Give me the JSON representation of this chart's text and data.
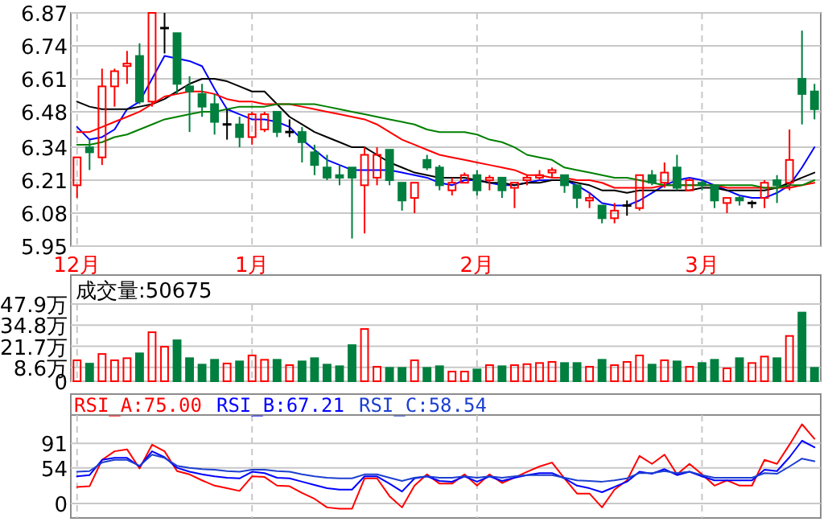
{
  "chart_data": [
    {
      "type": "candlestick",
      "categories": [
        "12月",
        null,
        null,
        null,
        null,
        null,
        null,
        null,
        null,
        null,
        null,
        null,
        null,
        null,
        "1月",
        null,
        null,
        null,
        null,
        null,
        null,
        null,
        null,
        null,
        null,
        null,
        null,
        null,
        null,
        null,
        null,
        null,
        "2月",
        null,
        null,
        null,
        null,
        null,
        null,
        null,
        null,
        null,
        null,
        null,
        null,
        null,
        null,
        null,
        null,
        null,
        "3月",
        null,
        null,
        null,
        null,
        null,
        null,
        null,
        null,
        null
      ],
      "ohlc": [
        [
          6.19,
          6.3,
          6.14,
          6.3
        ],
        [
          6.34,
          6.37,
          6.25,
          6.32
        ],
        [
          6.3,
          6.65,
          6.27,
          6.58
        ],
        [
          6.58,
          6.65,
          6.5,
          6.64
        ],
        [
          6.66,
          6.72,
          6.59,
          6.67
        ],
        [
          6.7,
          6.75,
          6.51,
          6.52
        ],
        [
          6.52,
          6.87,
          6.5,
          6.87
        ],
        [
          6.81,
          6.87,
          6.71,
          6.81
        ],
        [
          6.79,
          6.79,
          6.55,
          6.59
        ],
        [
          6.58,
          6.62,
          6.4,
          6.56
        ],
        [
          6.55,
          6.59,
          6.46,
          6.5
        ],
        [
          6.51,
          6.55,
          6.39,
          6.44
        ],
        [
          6.43,
          6.49,
          6.37,
          6.43
        ],
        [
          6.43,
          6.46,
          6.34,
          6.38
        ],
        [
          6.38,
          6.48,
          6.35,
          6.47
        ],
        [
          6.41,
          6.48,
          6.4,
          6.47
        ],
        [
          6.48,
          6.48,
          6.38,
          6.4
        ],
        [
          6.4,
          6.45,
          6.38,
          6.4
        ],
        [
          6.4,
          6.42,
          6.28,
          6.36
        ],
        [
          6.32,
          6.35,
          6.23,
          6.27
        ],
        [
          6.26,
          6.31,
          6.21,
          6.22
        ],
        [
          6.23,
          6.27,
          6.19,
          6.22
        ],
        [
          6.26,
          6.26,
          5.98,
          6.22
        ],
        [
          6.19,
          6.34,
          6.0,
          6.31
        ],
        [
          6.22,
          6.34,
          6.19,
          6.31
        ],
        [
          6.33,
          6.33,
          6.19,
          6.21
        ],
        [
          6.2,
          6.2,
          6.09,
          6.13
        ],
        [
          6.14,
          6.2,
          6.08,
          6.2
        ],
        [
          6.29,
          6.31,
          6.25,
          6.26
        ],
        [
          6.26,
          6.27,
          6.17,
          6.19
        ],
        [
          6.17,
          6.22,
          6.15,
          6.2
        ],
        [
          6.2,
          6.24,
          6.2,
          6.23
        ],
        [
          6.23,
          6.25,
          6.15,
          6.17
        ],
        [
          6.21,
          6.23,
          6.17,
          6.22
        ],
        [
          6.22,
          6.22,
          6.14,
          6.17
        ],
        [
          6.18,
          6.2,
          6.1,
          6.2
        ],
        [
          6.21,
          6.23,
          6.19,
          6.22
        ],
        [
          6.22,
          6.25,
          6.21,
          6.23
        ],
        [
          6.24,
          6.26,
          6.22,
          6.25
        ],
        [
          6.23,
          6.23,
          6.16,
          6.19
        ],
        [
          6.19,
          6.19,
          6.1,
          6.14
        ],
        [
          6.13,
          6.16,
          6.1,
          6.14
        ],
        [
          6.11,
          6.11,
          6.04,
          6.06
        ],
        [
          6.06,
          6.12,
          6.04,
          6.09
        ],
        [
          6.11,
          6.13,
          6.07,
          6.11
        ],
        [
          6.1,
          6.23,
          6.09,
          6.23
        ],
        [
          6.23,
          6.25,
          6.19,
          6.2
        ],
        [
          6.2,
          6.28,
          6.18,
          6.24
        ],
        [
          6.26,
          6.31,
          6.17,
          6.18
        ],
        [
          6.17,
          6.22,
          6.17,
          6.21
        ],
        [
          6.2,
          6.21,
          6.17,
          6.19
        ],
        [
          6.19,
          6.19,
          6.1,
          6.13
        ],
        [
          6.12,
          6.14,
          6.08,
          6.14
        ],
        [
          6.14,
          6.15,
          6.11,
          6.13
        ],
        [
          6.12,
          6.13,
          6.1,
          6.12
        ],
        [
          6.14,
          6.21,
          6.1,
          6.2
        ],
        [
          6.21,
          6.23,
          6.12,
          6.19
        ],
        [
          6.2,
          6.41,
          6.17,
          6.29
        ],
        [
          6.61,
          6.8,
          6.43,
          6.55
        ],
        [
          6.56,
          6.59,
          6.45,
          6.49
        ]
      ],
      "series": [
        {
          "type": "line",
          "color": "#0000ff",
          "values": [
            6.42,
            6.37,
            6.38,
            6.41,
            6.49,
            6.52,
            6.61,
            6.7,
            6.69,
            6.68,
            6.66,
            6.57,
            6.49,
            6.47,
            6.45,
            6.45,
            6.44,
            6.42,
            6.37,
            6.33,
            6.29,
            6.27,
            6.25,
            6.25,
            6.25,
            6.25,
            6.24,
            6.23,
            6.22,
            6.2,
            6.19,
            6.21,
            6.21,
            6.2,
            6.19,
            6.19,
            6.2,
            6.21,
            6.21,
            6.21,
            6.19,
            6.16,
            6.12,
            6.11,
            6.11,
            6.13,
            6.16,
            6.19,
            6.21,
            6.22,
            6.21,
            6.19,
            6.17,
            6.15,
            6.14,
            6.14,
            6.16,
            6.19,
            6.26,
            6.34
          ]
        },
        {
          "type": "line",
          "color": "#000000",
          "values": [
            6.52,
            6.5,
            6.49,
            6.49,
            6.49,
            6.5,
            6.51,
            6.53,
            6.56,
            6.59,
            6.61,
            6.61,
            6.6,
            6.58,
            6.56,
            6.56,
            6.51,
            6.46,
            6.43,
            6.4,
            6.38,
            6.36,
            6.34,
            6.34,
            6.31,
            6.28,
            6.26,
            6.24,
            6.23,
            6.22,
            6.22,
            6.22,
            6.21,
            6.2,
            6.2,
            6.19,
            6.2,
            6.2,
            6.21,
            6.21,
            6.2,
            6.19,
            6.17,
            6.17,
            6.16,
            6.17,
            6.17,
            6.17,
            6.17,
            6.17,
            6.18,
            6.18,
            6.17,
            6.17,
            6.17,
            6.17,
            6.18,
            6.2,
            6.22,
            6.24
          ]
        },
        {
          "type": "line",
          "color": "#ff0000",
          "values": [
            6.4,
            6.4,
            6.42,
            6.44,
            6.46,
            6.48,
            6.51,
            6.54,
            6.55,
            6.56,
            6.56,
            6.55,
            6.53,
            6.52,
            6.52,
            6.51,
            6.51,
            6.51,
            6.5,
            6.49,
            6.48,
            6.47,
            6.46,
            6.45,
            6.43,
            6.4,
            6.37,
            6.35,
            6.33,
            6.31,
            6.3,
            6.29,
            6.28,
            6.27,
            6.26,
            6.25,
            6.23,
            6.23,
            6.22,
            6.22,
            6.21,
            6.21,
            6.2,
            6.18,
            6.18,
            6.18,
            6.18,
            6.19,
            6.19,
            6.19,
            6.19,
            6.19,
            6.18,
            6.18,
            6.18,
            6.18,
            6.18,
            6.18,
            6.19,
            6.2
          ]
        },
        {
          "type": "line",
          "color": "#008000",
          "values": [
            6.35,
            6.35,
            6.36,
            6.38,
            6.39,
            6.41,
            6.43,
            6.45,
            6.46,
            6.47,
            6.48,
            6.48,
            6.49,
            6.5,
            6.5,
            6.5,
            6.51,
            6.51,
            6.51,
            6.51,
            6.5,
            6.49,
            6.48,
            6.47,
            6.46,
            6.45,
            6.44,
            6.43,
            6.41,
            6.4,
            6.4,
            6.4,
            6.39,
            6.37,
            6.36,
            6.34,
            6.31,
            6.3,
            6.29,
            6.26,
            6.25,
            6.24,
            6.23,
            6.22,
            6.22,
            6.21,
            6.2,
            6.19,
            6.19,
            6.19,
            6.19,
            6.19,
            6.19,
            6.19,
            6.19,
            6.18,
            6.18,
            6.19,
            6.19,
            6.21
          ]
        }
      ],
      "ylim": [
        5.95,
        6.87
      ],
      "yticks": [
        5.95,
        6.08,
        6.21,
        6.34,
        6.48,
        6.61,
        6.74,
        6.87
      ],
      "grid": true
    },
    {
      "type": "bar",
      "title": "成交量:50675",
      "categories": [
        null,
        null,
        null,
        null,
        null,
        null,
        null,
        null,
        null,
        null,
        null,
        null,
        null,
        null,
        null,
        null,
        null,
        null,
        null,
        null,
        null,
        null,
        null,
        null,
        null,
        null,
        null,
        null,
        null,
        null,
        null,
        null,
        null,
        null,
        null,
        null,
        null,
        null,
        null,
        null,
        null,
        null,
        null,
        null,
        null,
        null,
        null,
        null,
        null,
        null,
        null,
        null,
        null,
        null,
        null,
        null,
        null,
        null,
        null,
        null
      ],
      "values": [
        13.5,
        11.4,
        17.4,
        13.5,
        14.8,
        17.8,
        30.9,
        21.9,
        25.9,
        14.8,
        10.8,
        13.8,
        11.5,
        12.8,
        16.5,
        13.8,
        13.8,
        10.5,
        12.8,
        14.8,
        10.8,
        9.8,
        22.9,
        32.9,
        9.5,
        8.8,
        8.8,
        13.5,
        8.8,
        9.8,
        6.5,
        6.5,
        7.8,
        10.5,
        9.8,
        10.5,
        11.1,
        11.8,
        12.5,
        11.8,
        11.8,
        9.5,
        13.8,
        10.5,
        12.5,
        16.5,
        10.8,
        13.5,
        12.8,
        9.5,
        11.8,
        13.8,
        8.5,
        14.8,
        11.8,
        15.8,
        14.8,
        28.6,
        43.1,
        8.8
      ],
      "colors": [
        "#ff0000",
        "#007f3f",
        "#ff0000",
        "#ff0000",
        "#ff0000",
        "#007f3f",
        "#ff0000",
        "#ff0000",
        "#007f3f",
        "#007f3f",
        "#007f3f",
        "#007f3f",
        "#ff0000",
        "#007f3f",
        "#ff0000",
        "#ff0000",
        "#007f3f",
        "#ff0000",
        "#007f3f",
        "#007f3f",
        "#007f3f",
        "#007f3f",
        "#007f3f",
        "#ff0000",
        "#ff0000",
        "#007f3f",
        "#007f3f",
        "#ff0000",
        "#007f3f",
        "#007f3f",
        "#ff0000",
        "#ff0000",
        "#007f3f",
        "#ff0000",
        "#007f3f",
        "#ff0000",
        "#ff0000",
        "#ff0000",
        "#ff0000",
        "#007f3f",
        "#007f3f",
        "#ff0000",
        "#007f3f",
        "#ff0000",
        "#ff0000",
        "#ff0000",
        "#007f3f",
        "#ff0000",
        "#007f3f",
        "#ff0000",
        "#007f3f",
        "#007f3f",
        "#ff0000",
        "#007f3f",
        "#ff0000",
        "#ff0000",
        "#007f3f",
        "#ff0000",
        "#007f3f",
        "#007f3f"
      ],
      "ylim": [
        0,
        47.9
      ],
      "yticks": [
        0,
        {
          "value": 8.6,
          "label": "8.6万"
        },
        {
          "value": 21.7,
          "label": "21.7万"
        },
        {
          "value": 34.8,
          "label": "34.8万"
        },
        {
          "value": 47.9,
          "label": "47.9万"
        }
      ],
      "grid": true,
      "tick_labels": "y"
    },
    {
      "type": "line",
      "categories": [
        null,
        null,
        null,
        null,
        null,
        null,
        null,
        null,
        null,
        null,
        null,
        null,
        null,
        null,
        null,
        null,
        null,
        null,
        null,
        null,
        null,
        null,
        null,
        null,
        null,
        null,
        null,
        null,
        null,
        null,
        null,
        null,
        null,
        null,
        null,
        null,
        null,
        null,
        null,
        null,
        null,
        null,
        null,
        null,
        null,
        null,
        null,
        null,
        null,
        null,
        null,
        null,
        null,
        null,
        null,
        null,
        null,
        null,
        null,
        null
      ],
      "series": [
        {
          "name": "RSI_A:75.00",
          "color": "#ff0000",
          "values": [
            25,
            26,
            66,
            79,
            82,
            53,
            89,
            79,
            49,
            44,
            35,
            27,
            23,
            19,
            41,
            40,
            27,
            26,
            16,
            7,
            -6,
            -8,
            -8,
            38,
            38,
            11,
            -6,
            27,
            44,
            30,
            30,
            44,
            27,
            44,
            31,
            39,
            48,
            56,
            62,
            38,
            15,
            15,
            -6,
            21,
            35,
            72,
            60,
            74,
            44,
            60,
            44,
            27,
            35,
            27,
            27,
            66,
            60,
            89,
            120,
            98
          ]
        },
        {
          "name": "RSI_B:67.21",
          "color": "#0000ff",
          "values": [
            41,
            43,
            66,
            69,
            69,
            56,
            79,
            70,
            54,
            48,
            44,
            41,
            39,
            38,
            48,
            46,
            39,
            38,
            33,
            28,
            23,
            21,
            21,
            41,
            41,
            30,
            18,
            38,
            41,
            34,
            33,
            41,
            33,
            41,
            34,
            39,
            43,
            46,
            46,
            38,
            27,
            23,
            17,
            25,
            33,
            48,
            45,
            52,
            43,
            48,
            41,
            35,
            35,
            35,
            35,
            51,
            49,
            70,
            95,
            85
          ]
        },
        {
          "name": "RSI_C:58.54",
          "color": "#1c3fd0",
          "values": [
            48,
            49,
            62,
            66,
            66,
            57,
            74,
            69,
            57,
            54,
            52,
            51,
            49,
            48,
            51,
            51,
            49,
            48,
            44,
            41,
            39,
            38,
            38,
            44,
            44,
            39,
            34,
            39,
            41,
            39,
            39,
            41,
            39,
            41,
            39,
            41,
            43,
            43,
            43,
            39,
            35,
            34,
            33,
            35,
            38,
            46,
            46,
            49,
            46,
            48,
            43,
            39,
            39,
            39,
            39,
            46,
            45,
            56,
            68,
            64
          ]
        }
      ],
      "ylim": [
        -22,
        134
      ],
      "yticks": [
        0,
        54,
        91
      ],
      "grid": true,
      "legend": "top left",
      "tick_labels": "y"
    }
  ]
}
